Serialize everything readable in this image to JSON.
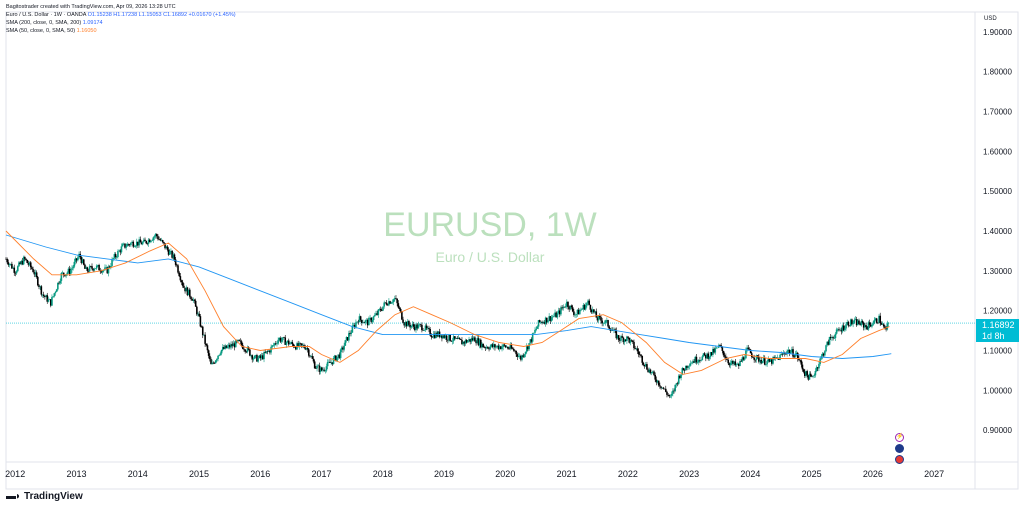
{
  "header": {
    "credit": "Bagitostrader created with TradingView.com, Apr 09, 2026 13:28 UTC",
    "symbol_line_prefix": "Euro / U.S. Dollar · 1W · OANDA",
    "ohlc": "O1.15238 H1.17238 L1.15053 C1.16892 +0.01670 (+1.45%)",
    "sma200_label": "SMA (200, close, 0, SMA, 200)",
    "sma200_value": "1.09174",
    "sma50_label": "SMA (50, close, 0, SMA, 50)",
    "sma50_value": "1.16050"
  },
  "watermark": {
    "symbol": "EURUSD, 1W",
    "description": "Euro / U.S. Dollar"
  },
  "axis_currency": "USD",
  "price_tag": {
    "price": "1.16892",
    "countdown": "1d 8h"
  },
  "brand": {
    "name": "TradingView",
    "logo": "tradingview-logo-icon"
  },
  "events": [
    "economic-event-icon",
    "earnings-event-icon",
    "us-flag-event-icon"
  ],
  "colors": {
    "up": "#089981",
    "down": "#000000",
    "sma200": "#2196f3",
    "sma50": "#ff7f2a",
    "price_line": "#00bcd4",
    "watermark": "#a5d6a7"
  },
  "chart_data": {
    "type": "candlestick",
    "symbol": "EURUSD",
    "timeframe": "1W",
    "y_ticks": [
      "1.90000",
      "1.80000",
      "1.70000",
      "1.60000",
      "1.50000",
      "1.40000",
      "1.30000",
      "1.20000",
      "1.10000",
      "1.00000",
      "0.90000"
    ],
    "ylim": [
      0.82,
      1.95
    ],
    "x_ticks": [
      "2012",
      "2013",
      "2014",
      "2015",
      "2016",
      "2017",
      "2018",
      "2019",
      "2020",
      "2021",
      "2022",
      "2023",
      "2024",
      "2025",
      "2026",
      "2027"
    ],
    "xlim": [
      2011.85,
      2027.65
    ],
    "last_price": 1.16892,
    "series": [
      {
        "name": "EURUSD",
        "points": [
          [
            2011.85,
            1.33
          ],
          [
            2012.0,
            1.3
          ],
          [
            2012.15,
            1.33
          ],
          [
            2012.3,
            1.3
          ],
          [
            2012.45,
            1.24
          ],
          [
            2012.58,
            1.22
          ],
          [
            2012.75,
            1.29
          ],
          [
            2012.9,
            1.3
          ],
          [
            2013.05,
            1.34
          ],
          [
            2013.15,
            1.3
          ],
          [
            2013.3,
            1.31
          ],
          [
            2013.5,
            1.3
          ],
          [
            2013.6,
            1.33
          ],
          [
            2013.75,
            1.36
          ],
          [
            2013.9,
            1.37
          ],
          [
            2014.1,
            1.37
          ],
          [
            2014.3,
            1.39
          ],
          [
            2014.45,
            1.36
          ],
          [
            2014.6,
            1.33
          ],
          [
            2014.75,
            1.26
          ],
          [
            2014.9,
            1.23
          ],
          [
            2015.0,
            1.18
          ],
          [
            2015.1,
            1.12
          ],
          [
            2015.2,
            1.06
          ],
          [
            2015.35,
            1.1
          ],
          [
            2015.5,
            1.11
          ],
          [
            2015.65,
            1.12
          ],
          [
            2015.8,
            1.1
          ],
          [
            2015.9,
            1.08
          ],
          [
            2016.0,
            1.08
          ],
          [
            2016.15,
            1.1
          ],
          [
            2016.3,
            1.13
          ],
          [
            2016.45,
            1.12
          ],
          [
            2016.6,
            1.11
          ],
          [
            2016.75,
            1.11
          ],
          [
            2016.9,
            1.06
          ],
          [
            2017.0,
            1.05
          ],
          [
            2017.15,
            1.07
          ],
          [
            2017.3,
            1.09
          ],
          [
            2017.45,
            1.14
          ],
          [
            2017.6,
            1.18
          ],
          [
            2017.75,
            1.17
          ],
          [
            2017.9,
            1.19
          ],
          [
            2018.05,
            1.22
          ],
          [
            2018.2,
            1.23
          ],
          [
            2018.35,
            1.17
          ],
          [
            2018.5,
            1.16
          ],
          [
            2018.65,
            1.16
          ],
          [
            2018.8,
            1.14
          ],
          [
            2018.95,
            1.14
          ],
          [
            2019.1,
            1.13
          ],
          [
            2019.3,
            1.12
          ],
          [
            2019.5,
            1.13
          ],
          [
            2019.65,
            1.11
          ],
          [
            2019.85,
            1.11
          ],
          [
            2020.0,
            1.11
          ],
          [
            2020.15,
            1.1
          ],
          [
            2020.25,
            1.08
          ],
          [
            2020.4,
            1.12
          ],
          [
            2020.55,
            1.17
          ],
          [
            2020.7,
            1.18
          ],
          [
            2020.85,
            1.19
          ],
          [
            2021.0,
            1.22
          ],
          [
            2021.15,
            1.19
          ],
          [
            2021.35,
            1.22
          ],
          [
            2021.5,
            1.18
          ],
          [
            2021.65,
            1.17
          ],
          [
            2021.85,
            1.13
          ],
          [
            2022.0,
            1.13
          ],
          [
            2022.15,
            1.1
          ],
          [
            2022.3,
            1.06
          ],
          [
            2022.5,
            1.02
          ],
          [
            2022.7,
            0.98
          ],
          [
            2022.85,
            1.04
          ],
          [
            2023.0,
            1.07
          ],
          [
            2023.15,
            1.08
          ],
          [
            2023.35,
            1.09
          ],
          [
            2023.5,
            1.11
          ],
          [
            2023.65,
            1.07
          ],
          [
            2023.8,
            1.06
          ],
          [
            2023.95,
            1.1
          ],
          [
            2024.1,
            1.08
          ],
          [
            2024.3,
            1.07
          ],
          [
            2024.45,
            1.08
          ],
          [
            2024.6,
            1.1
          ],
          [
            2024.75,
            1.09
          ],
          [
            2024.9,
            1.04
          ],
          [
            2025.0,
            1.03
          ],
          [
            2025.15,
            1.08
          ],
          [
            2025.3,
            1.13
          ],
          [
            2025.45,
            1.15
          ],
          [
            2025.6,
            1.17
          ],
          [
            2025.75,
            1.17
          ],
          [
            2025.9,
            1.16
          ],
          [
            2026.0,
            1.17
          ],
          [
            2026.1,
            1.18
          ],
          [
            2026.2,
            1.15
          ],
          [
            2026.27,
            1.169
          ]
        ]
      },
      {
        "name": "SMA 200",
        "points": [
          [
            2011.85,
            1.39
          ],
          [
            2012.5,
            1.36
          ],
          [
            2013.0,
            1.34
          ],
          [
            2013.5,
            1.33
          ],
          [
            2014.0,
            1.32
          ],
          [
            2014.5,
            1.33
          ],
          [
            2015.0,
            1.31
          ],
          [
            2015.5,
            1.28
          ],
          [
            2016.0,
            1.25
          ],
          [
            2016.5,
            1.22
          ],
          [
            2017.0,
            1.19
          ],
          [
            2017.5,
            1.16
          ],
          [
            2018.0,
            1.14
          ],
          [
            2018.5,
            1.14
          ],
          [
            2019.0,
            1.14
          ],
          [
            2019.5,
            1.14
          ],
          [
            2020.0,
            1.14
          ],
          [
            2020.5,
            1.14
          ],
          [
            2021.0,
            1.15
          ],
          [
            2021.4,
            1.16
          ],
          [
            2021.8,
            1.15
          ],
          [
            2022.2,
            1.14
          ],
          [
            2022.6,
            1.13
          ],
          [
            2023.0,
            1.12
          ],
          [
            2023.5,
            1.11
          ],
          [
            2024.0,
            1.1
          ],
          [
            2024.5,
            1.095
          ],
          [
            2025.0,
            1.085
          ],
          [
            2025.5,
            1.08
          ],
          [
            2026.0,
            1.085
          ],
          [
            2026.3,
            1.092
          ]
        ]
      },
      {
        "name": "SMA 50",
        "points": [
          [
            2011.85,
            1.4
          ],
          [
            2012.3,
            1.33
          ],
          [
            2012.6,
            1.29
          ],
          [
            2013.0,
            1.29
          ],
          [
            2013.4,
            1.3
          ],
          [
            2013.8,
            1.32
          ],
          [
            2014.2,
            1.35
          ],
          [
            2014.5,
            1.37
          ],
          [
            2014.8,
            1.33
          ],
          [
            2015.1,
            1.25
          ],
          [
            2015.4,
            1.16
          ],
          [
            2015.7,
            1.11
          ],
          [
            2016.0,
            1.1
          ],
          [
            2016.5,
            1.11
          ],
          [
            2016.8,
            1.11
          ],
          [
            2017.0,
            1.09
          ],
          [
            2017.3,
            1.07
          ],
          [
            2017.6,
            1.1
          ],
          [
            2017.9,
            1.15
          ],
          [
            2018.2,
            1.19
          ],
          [
            2018.5,
            1.21
          ],
          [
            2018.8,
            1.19
          ],
          [
            2019.1,
            1.17
          ],
          [
            2019.5,
            1.14
          ],
          [
            2019.9,
            1.12
          ],
          [
            2020.3,
            1.11
          ],
          [
            2020.6,
            1.12
          ],
          [
            2020.9,
            1.15
          ],
          [
            2021.2,
            1.18
          ],
          [
            2021.6,
            1.19
          ],
          [
            2021.9,
            1.17
          ],
          [
            2022.3,
            1.12
          ],
          [
            2022.6,
            1.07
          ],
          [
            2022.9,
            1.04
          ],
          [
            2023.2,
            1.05
          ],
          [
            2023.6,
            1.08
          ],
          [
            2023.9,
            1.09
          ],
          [
            2024.3,
            1.08
          ],
          [
            2024.6,
            1.08
          ],
          [
            2024.9,
            1.08
          ],
          [
            2025.2,
            1.07
          ],
          [
            2025.5,
            1.09
          ],
          [
            2025.8,
            1.13
          ],
          [
            2026.1,
            1.15
          ],
          [
            2026.27,
            1.16
          ]
        ]
      }
    ]
  }
}
